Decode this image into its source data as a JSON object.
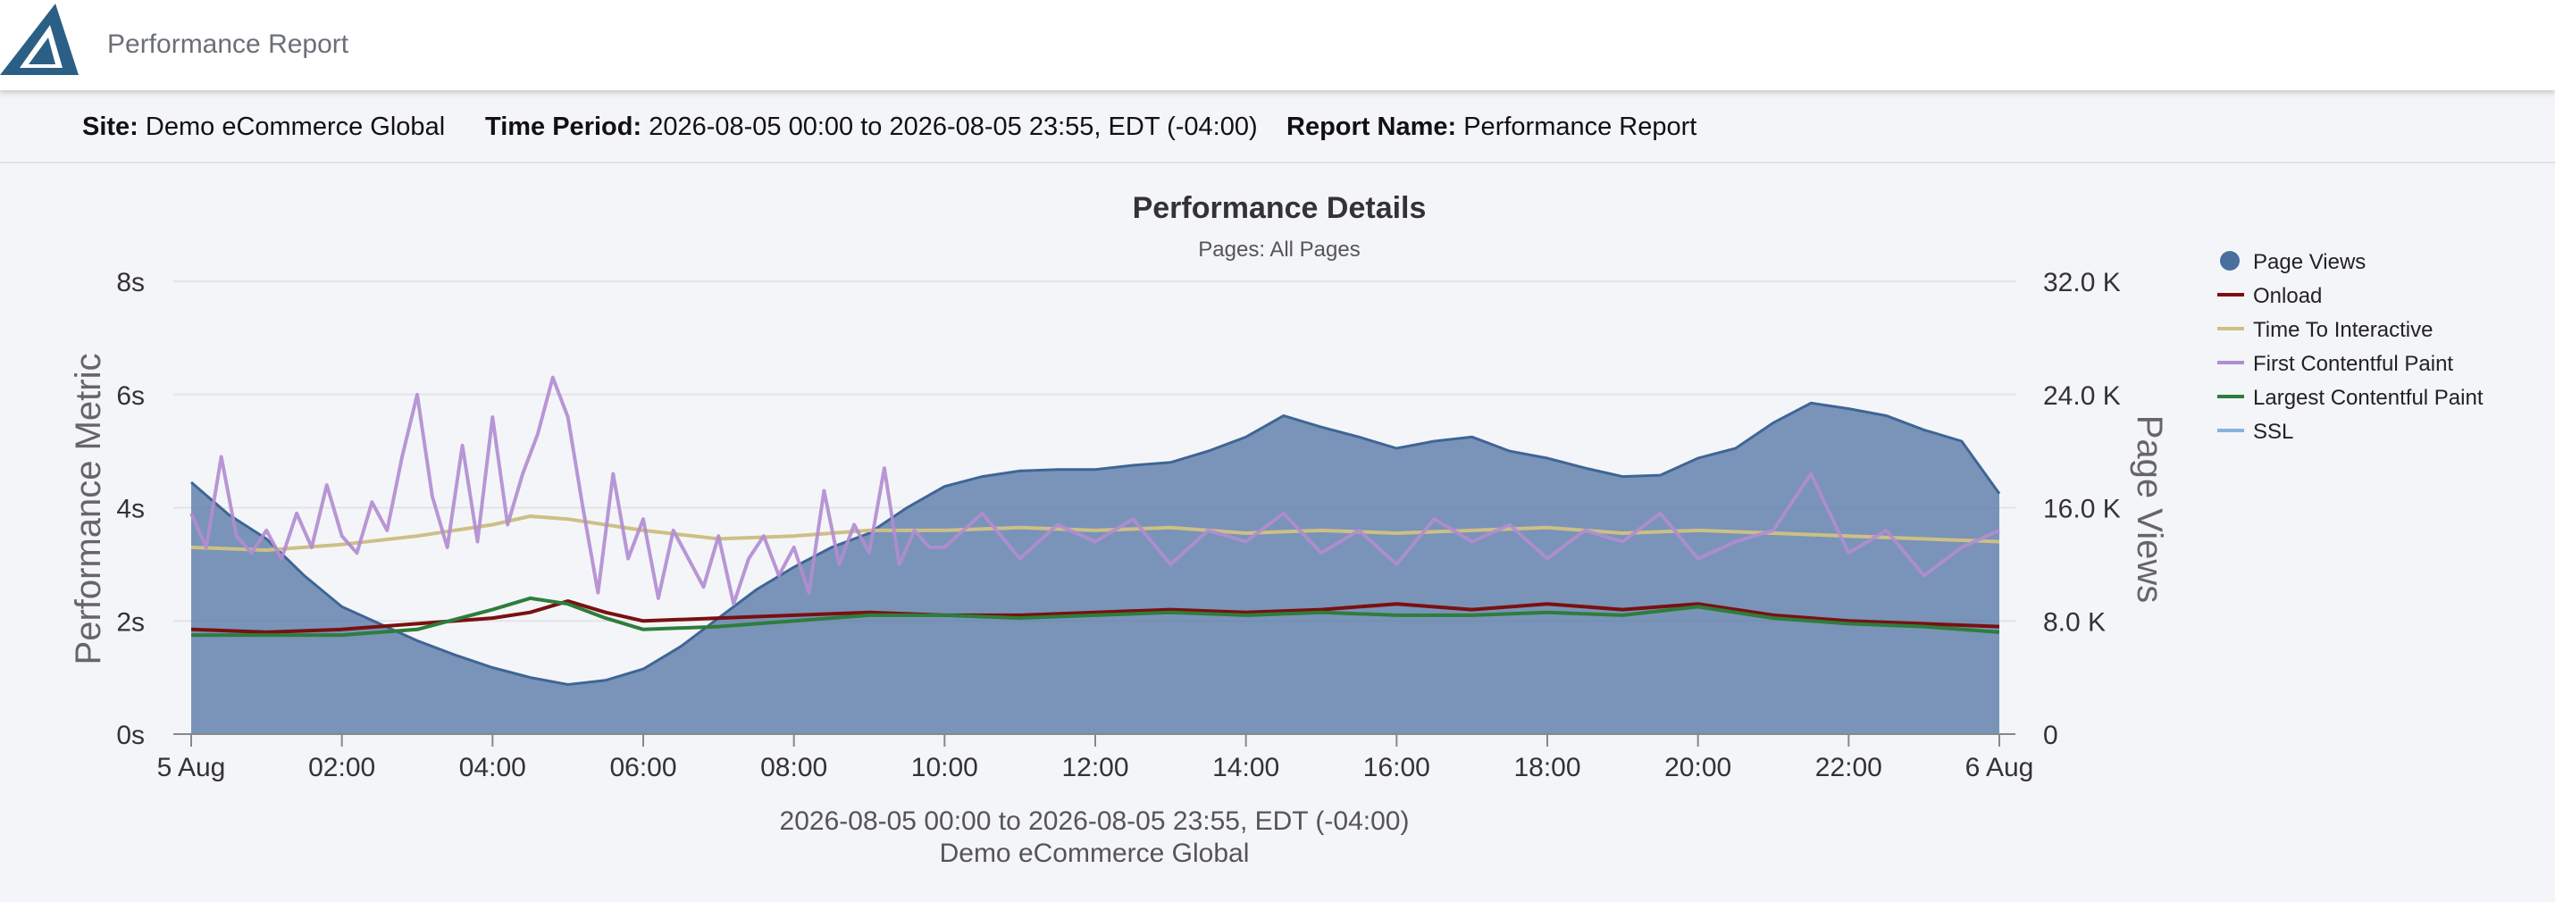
{
  "app": {
    "title": "Performance Report"
  },
  "info": {
    "site_label": "Site:",
    "site_value": "Demo eCommerce Global",
    "period_label": "Time Period:",
    "period_value": "2026-08-05 00:00 to 2026-08-05 23:55, EDT (-04:00)",
    "report_label": "Report Name:",
    "report_value": "Performance Report"
  },
  "colors": {
    "brand": "#2b5f86",
    "page_views": "#4a6f9f",
    "onload": "#7a1010",
    "tti": "#cdbf86",
    "fcp": "#b18cd0",
    "lcp": "#2e7d3c",
    "ssl": "#89b2e2"
  },
  "chart_data": {
    "type": "area",
    "title": "Performance Details",
    "subtitle": "Pages: All Pages",
    "ylabel": "Performance Metric",
    "ylabel_right": "Page Views",
    "ylim": [
      0,
      8
    ],
    "ylim_right": [
      0,
      32000
    ],
    "y_ticks": [
      "0s",
      "2s",
      "4s",
      "6s",
      "8s"
    ],
    "y_ticks_right": [
      "0",
      "8.0 K",
      "16.0 K",
      "24.0 K",
      "32.0 K"
    ],
    "x_ticks": [
      "5 Aug",
      "02:00",
      "04:00",
      "06:00",
      "08:00",
      "10:00",
      "12:00",
      "14:00",
      "16:00",
      "18:00",
      "20:00",
      "22:00",
      "6 Aug"
    ],
    "x_range_hours": [
      0,
      24
    ],
    "xlabel_line1": "2026-08-05 00:00 to 2026-08-05 23:55, EDT (-04:00)",
    "xlabel_line2": "Demo eCommerce Global",
    "legend_position": "right",
    "series": [
      {
        "name": "Page Views",
        "axis": "right",
        "style": "area",
        "x": [
          0,
          0.5,
          1,
          1.5,
          2,
          2.5,
          3,
          3.5,
          4,
          4.5,
          5,
          5.5,
          6,
          6.5,
          7,
          7.5,
          8,
          8.5,
          9,
          9.5,
          10,
          10.5,
          11,
          11.5,
          12,
          12.5,
          13,
          13.5,
          14,
          14.5,
          15,
          15.5,
          16,
          16.5,
          17,
          17.5,
          18,
          18.5,
          19,
          19.5,
          20,
          20.5,
          21,
          21.5,
          22,
          22.5,
          23,
          23.5,
          24
        ],
        "values": [
          17800,
          15500,
          13800,
          11200,
          9000,
          7800,
          6600,
          5600,
          4700,
          4000,
          3500,
          3800,
          4600,
          6200,
          8200,
          10200,
          11800,
          13200,
          14200,
          16000,
          17500,
          18200,
          18600,
          18700,
          18700,
          19000,
          19200,
          20000,
          21000,
          22500,
          21700,
          21000,
          20200,
          20700,
          21000,
          20000,
          19500,
          18800,
          18200,
          18300,
          19500,
          20200,
          22000,
          23400,
          23000,
          22500,
          21500,
          20700,
          17000
        ]
      },
      {
        "name": "Onload",
        "axis": "left",
        "style": "line",
        "x": [
          0,
          1,
          2,
          3,
          4,
          4.5,
          5,
          5.5,
          6,
          7,
          8,
          9,
          10,
          11,
          12,
          13,
          14,
          15,
          16,
          17,
          18,
          19,
          20,
          21,
          22,
          23,
          24
        ],
        "values": [
          1.85,
          1.8,
          1.85,
          1.95,
          2.05,
          2.15,
          2.35,
          2.15,
          2.0,
          2.05,
          2.1,
          2.15,
          2.1,
          2.1,
          2.15,
          2.2,
          2.15,
          2.2,
          2.3,
          2.2,
          2.3,
          2.2,
          2.3,
          2.1,
          2.0,
          1.95,
          1.9
        ]
      },
      {
        "name": "Time To Interactive",
        "axis": "left",
        "style": "line",
        "x": [
          0,
          1,
          2,
          3,
          4,
          4.5,
          5,
          6,
          7,
          8,
          9,
          10,
          11,
          12,
          13,
          14,
          15,
          16,
          17,
          18,
          19,
          20,
          21,
          22,
          23,
          24
        ],
        "values": [
          3.3,
          3.25,
          3.35,
          3.5,
          3.7,
          3.85,
          3.8,
          3.6,
          3.45,
          3.5,
          3.6,
          3.6,
          3.65,
          3.6,
          3.65,
          3.55,
          3.6,
          3.55,
          3.6,
          3.65,
          3.55,
          3.6,
          3.55,
          3.5,
          3.45,
          3.4
        ]
      },
      {
        "name": "First Contentful Paint",
        "axis": "left",
        "style": "line",
        "x": [
          0,
          0.2,
          0.4,
          0.6,
          0.8,
          1,
          1.2,
          1.4,
          1.6,
          1.8,
          2,
          2.2,
          2.4,
          2.6,
          2.8,
          3,
          3.2,
          3.4,
          3.6,
          3.8,
          4,
          4.2,
          4.4,
          4.6,
          4.8,
          5,
          5.2,
          5.4,
          5.6,
          5.8,
          6,
          6.2,
          6.4,
          6.6,
          6.8,
          7,
          7.2,
          7.4,
          7.6,
          7.8,
          8,
          8.2,
          8.4,
          8.6,
          8.8,
          9,
          9.2,
          9.4,
          9.6,
          9.8,
          10,
          10.5,
          11,
          11.5,
          12,
          12.5,
          13,
          13.5,
          14,
          14.5,
          15,
          15.5,
          16,
          16.5,
          17,
          17.5,
          18,
          18.5,
          19,
          19.5,
          20,
          20.5,
          21,
          21.5,
          22,
          22.5,
          23,
          23.5,
          24
        ],
        "values": [
          3.9,
          3.3,
          4.9,
          3.5,
          3.2,
          3.6,
          3.1,
          3.9,
          3.3,
          4.4,
          3.5,
          3.2,
          4.1,
          3.6,
          4.9,
          6.0,
          4.2,
          3.3,
          5.1,
          3.4,
          5.6,
          3.7,
          4.6,
          5.3,
          6.3,
          5.6,
          4.0,
          2.5,
          4.6,
          3.1,
          3.8,
          2.4,
          3.6,
          3.1,
          2.6,
          3.5,
          2.3,
          3.1,
          3.5,
          2.8,
          3.3,
          2.5,
          4.3,
          3.0,
          3.7,
          3.2,
          4.7,
          3.0,
          3.6,
          3.3,
          3.3,
          3.9,
          3.1,
          3.7,
          3.4,
          3.8,
          3.0,
          3.6,
          3.4,
          3.9,
          3.2,
          3.6,
          3.0,
          3.8,
          3.4,
          3.7,
          3.1,
          3.6,
          3.4,
          3.9,
          3.1,
          3.4,
          3.6,
          4.6,
          3.2,
          3.6,
          2.8,
          3.3,
          3.6
        ]
      },
      {
        "name": "Largest Contentful Paint",
        "axis": "left",
        "style": "line",
        "x": [
          0,
          1,
          2,
          3,
          4,
          4.5,
          5,
          5.5,
          6,
          7,
          8,
          9,
          10,
          11,
          12,
          13,
          14,
          15,
          16,
          17,
          18,
          19,
          20,
          21,
          22,
          23,
          24
        ],
        "values": [
          1.75,
          1.75,
          1.75,
          1.85,
          2.2,
          2.4,
          2.3,
          2.05,
          1.85,
          1.9,
          2.0,
          2.1,
          2.1,
          2.05,
          2.1,
          2.15,
          2.1,
          2.15,
          2.1,
          2.1,
          2.15,
          2.1,
          2.25,
          2.05,
          1.95,
          1.9,
          1.8
        ]
      },
      {
        "name": "SSL",
        "axis": "left",
        "style": "line",
        "x": [],
        "values": []
      }
    ]
  }
}
